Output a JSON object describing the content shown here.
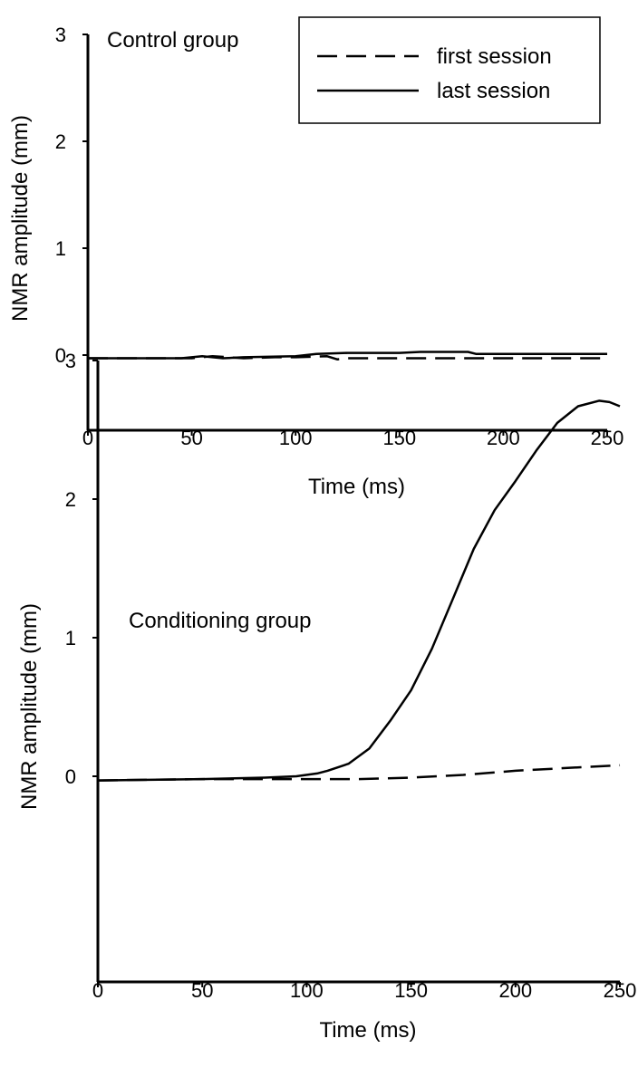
{
  "chart_data": [
    {
      "type": "line",
      "title": "Control group",
      "xlabel": "Time (ms)",
      "ylabel": "NMR amplitude (mm)",
      "xlim": [
        0,
        250
      ],
      "ylim": [
        -0.7,
        3
      ],
      "xticks": [
        0,
        50,
        100,
        150,
        200,
        250
      ],
      "yticks": [
        0,
        1,
        2,
        3
      ],
      "grid": false,
      "legend": {
        "placement": "top-right",
        "entries": [
          "first session",
          "last session"
        ]
      },
      "series": [
        {
          "name": "first session",
          "style": "dashed",
          "x": [
            0,
            50,
            60,
            75,
            90,
            100,
            115,
            120,
            125,
            150,
            200,
            250
          ],
          "y": [
            -0.03,
            -0.03,
            -0.01,
            -0.03,
            -0.02,
            -0.02,
            -0.01,
            -0.04,
            -0.03,
            -0.03,
            -0.03,
            -0.03
          ]
        },
        {
          "name": "last session",
          "style": "solid",
          "x": [
            0,
            45,
            55,
            65,
            75,
            100,
            110,
            125,
            150,
            160,
            175,
            183,
            187,
            200,
            250
          ],
          "y": [
            -0.03,
            -0.03,
            -0.01,
            -0.03,
            -0.02,
            -0.01,
            0.01,
            0.02,
            0.02,
            0.03,
            0.03,
            0.03,
            0.01,
            0.01,
            0.01
          ]
        }
      ]
    },
    {
      "type": "line",
      "title": "Conditioning group",
      "xlabel": "Time (ms)",
      "ylabel": "NMR amplitude (mm)",
      "xlim": [
        0,
        250
      ],
      "ylim": [
        -0.5,
        3
      ],
      "xticks": [
        0,
        50,
        100,
        150,
        200,
        250
      ],
      "yticks": [
        0,
        1,
        2,
        3
      ],
      "grid": false,
      "series": [
        {
          "name": "first session",
          "style": "dashed",
          "x": [
            0,
            50,
            75,
            100,
            125,
            150,
            175,
            200,
            225,
            250
          ],
          "y": [
            -0.03,
            -0.02,
            -0.02,
            -0.02,
            -0.02,
            -0.01,
            0.01,
            0.04,
            0.06,
            0.08
          ]
        },
        {
          "name": "last session",
          "style": "solid",
          "x": [
            0,
            50,
            80,
            95,
            105,
            110,
            120,
            130,
            140,
            150,
            160,
            170,
            180,
            190,
            200,
            210,
            220,
            230,
            240,
            245,
            250
          ],
          "y": [
            -0.03,
            -0.02,
            -0.01,
            0.0,
            0.02,
            0.04,
            0.09,
            0.2,
            0.4,
            0.62,
            0.92,
            1.28,
            1.64,
            1.92,
            2.13,
            2.35,
            2.55,
            2.67,
            2.71,
            2.7,
            2.67
          ]
        }
      ]
    }
  ]
}
